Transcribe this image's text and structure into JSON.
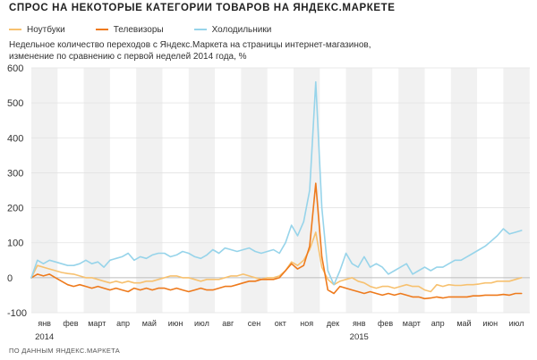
{
  "title": "СПРОС НА НЕКОТОРЫЕ КАТЕГОРИИ ТОВАРОВ НА ЯНДЕКС.МАРКЕТЕ",
  "subtitle_lines": [
    "Недельное количество переходов с Яндекс.Маркета на страницы интернет-магазинов,",
    "изменение по сравнению с первой неделей 2014 года, %"
  ],
  "footer": "ПО ДАННЫМ ЯНДЕКС.МАРКЕТА",
  "colors": {
    "laptops": "#f7c16f",
    "tvs": "#ee7a1c",
    "fridges": "#97d4ea",
    "band": "#f1f1f1",
    "grid": "#e2e2e2",
    "zero": "#bdbdbd"
  },
  "chart_data": {
    "type": "line",
    "ylim": [
      -100,
      600
    ],
    "yticks": [
      -100,
      0,
      100,
      200,
      300,
      400,
      500,
      600
    ],
    "grid": true,
    "legend_position": "top-left",
    "months": [
      "янв",
      "фев",
      "март",
      "апр",
      "май",
      "июн",
      "июл",
      "авг",
      "сен",
      "окт",
      "ноя",
      "дек",
      "янв",
      "фев",
      "март",
      "апр",
      "май",
      "июн",
      "июл"
    ],
    "years": [
      {
        "label": "2014",
        "month_index": 0
      },
      {
        "label": "2015",
        "month_index": 12
      }
    ],
    "x_unit": "week index (0 = first week of January 2014)",
    "series": [
      {
        "name": "Ноутбуки",
        "color_key": "laptops",
        "points": [
          [
            0,
            0
          ],
          [
            1,
            35
          ],
          [
            2,
            30
          ],
          [
            3,
            25
          ],
          [
            4,
            20
          ],
          [
            5,
            15
          ],
          [
            6,
            12
          ],
          [
            7,
            10
          ],
          [
            8,
            5
          ],
          [
            9,
            0
          ],
          [
            10,
            0
          ],
          [
            11,
            -5
          ],
          [
            12,
            -10
          ],
          [
            13,
            -15
          ],
          [
            14,
            -10
          ],
          [
            15,
            -15
          ],
          [
            16,
            -10
          ],
          [
            17,
            -15
          ],
          [
            18,
            -15
          ],
          [
            19,
            -10
          ],
          [
            20,
            -10
          ],
          [
            21,
            -5
          ],
          [
            22,
            0
          ],
          [
            23,
            5
          ],
          [
            24,
            5
          ],
          [
            25,
            0
          ],
          [
            26,
            0
          ],
          [
            27,
            -5
          ],
          [
            28,
            -10
          ],
          [
            29,
            -5
          ],
          [
            30,
            -5
          ],
          [
            31,
            -5
          ],
          [
            32,
            0
          ],
          [
            33,
            5
          ],
          [
            34,
            5
          ],
          [
            35,
            10
          ],
          [
            36,
            5
          ],
          [
            37,
            0
          ],
          [
            38,
            -5
          ],
          [
            39,
            0
          ],
          [
            40,
            0
          ],
          [
            41,
            5
          ],
          [
            42,
            20
          ],
          [
            43,
            45
          ],
          [
            44,
            35
          ],
          [
            45,
            50
          ],
          [
            46,
            80
          ],
          [
            47,
            130
          ],
          [
            48,
            30
          ],
          [
            49,
            -5
          ],
          [
            50,
            -20
          ],
          [
            51,
            -10
          ],
          [
            52,
            -5
          ],
          [
            53,
            0
          ],
          [
            54,
            -10
          ],
          [
            55,
            -15
          ],
          [
            56,
            -25
          ],
          [
            57,
            -30
          ],
          [
            58,
            -25
          ],
          [
            59,
            -25
          ],
          [
            60,
            -30
          ],
          [
            61,
            -25
          ],
          [
            62,
            -20
          ],
          [
            63,
            -25
          ],
          [
            64,
            -25
          ],
          [
            65,
            -35
          ],
          [
            66,
            -40
          ],
          [
            67,
            -20
          ],
          [
            68,
            -25
          ],
          [
            69,
            -20
          ],
          [
            70,
            -22
          ],
          [
            71,
            -22
          ],
          [
            72,
            -20
          ],
          [
            73,
            -20
          ],
          [
            74,
            -18
          ],
          [
            75,
            -15
          ],
          [
            76,
            -15
          ],
          [
            77,
            -10
          ],
          [
            78,
            -10
          ],
          [
            79,
            -10
          ],
          [
            80,
            -5
          ],
          [
            81,
            0
          ]
        ]
      },
      {
        "name": "Телевизоры",
        "color_key": "tvs",
        "points": [
          [
            0,
            0
          ],
          [
            1,
            10
          ],
          [
            2,
            5
          ],
          [
            3,
            10
          ],
          [
            4,
            0
          ],
          [
            5,
            -10
          ],
          [
            6,
            -20
          ],
          [
            7,
            -25
          ],
          [
            8,
            -20
          ],
          [
            9,
            -25
          ],
          [
            10,
            -30
          ],
          [
            11,
            -25
          ],
          [
            12,
            -30
          ],
          [
            13,
            -35
          ],
          [
            14,
            -30
          ],
          [
            15,
            -35
          ],
          [
            16,
            -40
          ],
          [
            17,
            -30
          ],
          [
            18,
            -35
          ],
          [
            19,
            -30
          ],
          [
            20,
            -35
          ],
          [
            21,
            -30
          ],
          [
            22,
            -30
          ],
          [
            23,
            -35
          ],
          [
            24,
            -30
          ],
          [
            25,
            -35
          ],
          [
            26,
            -40
          ],
          [
            27,
            -35
          ],
          [
            28,
            -30
          ],
          [
            29,
            -35
          ],
          [
            30,
            -35
          ],
          [
            31,
            -30
          ],
          [
            32,
            -25
          ],
          [
            33,
            -25
          ],
          [
            34,
            -20
          ],
          [
            35,
            -15
          ],
          [
            36,
            -10
          ],
          [
            37,
            -10
          ],
          [
            38,
            -5
          ],
          [
            39,
            -5
          ],
          [
            40,
            -5
          ],
          [
            41,
            0
          ],
          [
            42,
            20
          ],
          [
            43,
            40
          ],
          [
            44,
            25
          ],
          [
            45,
            35
          ],
          [
            46,
            90
          ],
          [
            47,
            270
          ],
          [
            48,
            60
          ],
          [
            49,
            -35
          ],
          [
            50,
            -45
          ],
          [
            51,
            -25
          ],
          [
            52,
            -30
          ],
          [
            53,
            -35
          ],
          [
            54,
            -40
          ],
          [
            55,
            -45
          ],
          [
            56,
            -40
          ],
          [
            57,
            -45
          ],
          [
            58,
            -50
          ],
          [
            59,
            -45
          ],
          [
            60,
            -50
          ],
          [
            61,
            -45
          ],
          [
            62,
            -50
          ],
          [
            63,
            -55
          ],
          [
            64,
            -55
          ],
          [
            65,
            -60
          ],
          [
            66,
            -58
          ],
          [
            67,
            -55
          ],
          [
            68,
            -58
          ],
          [
            69,
            -55
          ],
          [
            70,
            -55
          ],
          [
            71,
            -55
          ],
          [
            72,
            -55
          ],
          [
            73,
            -52
          ],
          [
            74,
            -52
          ],
          [
            75,
            -50
          ],
          [
            76,
            -50
          ],
          [
            77,
            -50
          ],
          [
            78,
            -48
          ],
          [
            79,
            -50
          ],
          [
            80,
            -45
          ],
          [
            81,
            -45
          ]
        ]
      },
      {
        "name": "Холодильники",
        "color_key": "fridges",
        "points": [
          [
            0,
            0
          ],
          [
            1,
            50
          ],
          [
            2,
            40
          ],
          [
            3,
            50
          ],
          [
            4,
            45
          ],
          [
            5,
            40
          ],
          [
            6,
            35
          ],
          [
            7,
            35
          ],
          [
            8,
            40
          ],
          [
            9,
            50
          ],
          [
            10,
            40
          ],
          [
            11,
            45
          ],
          [
            12,
            30
          ],
          [
            13,
            50
          ],
          [
            14,
            55
          ],
          [
            15,
            60
          ],
          [
            16,
            70
          ],
          [
            17,
            50
          ],
          [
            18,
            60
          ],
          [
            19,
            55
          ],
          [
            20,
            65
          ],
          [
            21,
            70
          ],
          [
            22,
            70
          ],
          [
            23,
            60
          ],
          [
            24,
            65
          ],
          [
            25,
            75
          ],
          [
            26,
            70
          ],
          [
            27,
            60
          ],
          [
            28,
            55
          ],
          [
            29,
            65
          ],
          [
            30,
            80
          ],
          [
            31,
            70
          ],
          [
            32,
            85
          ],
          [
            33,
            80
          ],
          [
            34,
            75
          ],
          [
            35,
            80
          ],
          [
            36,
            85
          ],
          [
            37,
            75
          ],
          [
            38,
            70
          ],
          [
            39,
            75
          ],
          [
            40,
            80
          ],
          [
            41,
            70
          ],
          [
            42,
            100
          ],
          [
            43,
            150
          ],
          [
            44,
            120
          ],
          [
            45,
            160
          ],
          [
            46,
            250
          ],
          [
            47,
            560
          ],
          [
            48,
            200
          ],
          [
            49,
            20
          ],
          [
            50,
            -20
          ],
          [
            51,
            20
          ],
          [
            52,
            70
          ],
          [
            53,
            40
          ],
          [
            54,
            30
          ],
          [
            55,
            60
          ],
          [
            56,
            30
          ],
          [
            57,
            40
          ],
          [
            58,
            30
          ],
          [
            59,
            10
          ],
          [
            60,
            20
          ],
          [
            61,
            30
          ],
          [
            62,
            40
          ],
          [
            63,
            10
          ],
          [
            64,
            20
          ],
          [
            65,
            30
          ],
          [
            66,
            20
          ],
          [
            67,
            30
          ],
          [
            68,
            30
          ],
          [
            69,
            40
          ],
          [
            70,
            50
          ],
          [
            71,
            50
          ],
          [
            72,
            60
          ],
          [
            73,
            70
          ],
          [
            74,
            80
          ],
          [
            75,
            90
          ],
          [
            76,
            105
          ],
          [
            77,
            120
          ],
          [
            78,
            140
          ],
          [
            79,
            125
          ],
          [
            80,
            130
          ],
          [
            81,
            135
          ]
        ]
      }
    ]
  }
}
